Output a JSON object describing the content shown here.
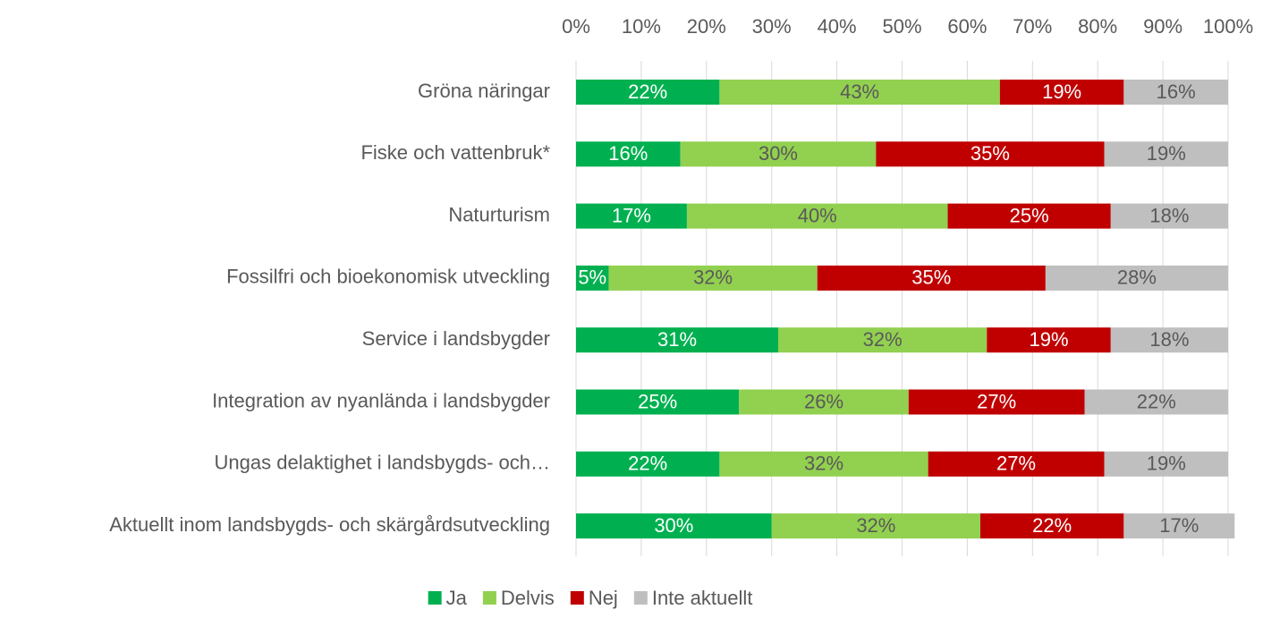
{
  "chart_data": {
    "type": "stacked_bar_horizontal",
    "categories": [
      "Gröna näringar",
      "Fiske och vattenbruk*",
      "Naturturism",
      "Fossilfri och bioekonomisk utveckling",
      "Service i landsbygder",
      "Integration av nyanlända i landsbygder",
      "Ungas delaktighet i landsbygds- och…",
      "Aktuellt inom landsbygds- och skärgårdsutveckling"
    ],
    "series": [
      {
        "name": "Ja",
        "color": "#00b050",
        "label_color": "#ffffff",
        "values": [
          22,
          16,
          17,
          5,
          31,
          25,
          22,
          30
        ],
        "value_labels": [
          "22%",
          "16%",
          "17%",
          "5%",
          "31%",
          "25%",
          "22%",
          "30%"
        ]
      },
      {
        "name": "Delvis",
        "color": "#92d050",
        "label_color": "#595959",
        "values": [
          43,
          30,
          40,
          32,
          32,
          26,
          32,
          32
        ],
        "value_labels": [
          "43%",
          "30%",
          "40%",
          "32%",
          "32%",
          "26%",
          "32%",
          "32%"
        ]
      },
      {
        "name": "Nej",
        "color": "#c00000",
        "label_color": "#ffffff",
        "values": [
          19,
          35,
          25,
          35,
          19,
          27,
          27,
          22
        ],
        "value_labels": [
          "19%",
          "35%",
          "25%",
          "35%",
          "19%",
          "27%",
          "27%",
          "22%"
        ]
      },
      {
        "name": "Inte aktuellt",
        "color": "#bfbfbf",
        "label_color": "#595959",
        "values": [
          16,
          19,
          18,
          28,
          18,
          22,
          19,
          17
        ],
        "value_labels": [
          "16%",
          "19%",
          "18%",
          "28%",
          "18%",
          "22%",
          "19%",
          "17%"
        ]
      }
    ],
    "xlim": [
      0,
      100
    ],
    "xticks": [
      {
        "value": 0,
        "label": "0%"
      },
      {
        "value": 10,
        "label": "10%"
      },
      {
        "value": 20,
        "label": "20%"
      },
      {
        "value": 30,
        "label": "30%"
      },
      {
        "value": 40,
        "label": "40%"
      },
      {
        "value": 50,
        "label": "50%"
      },
      {
        "value": 60,
        "label": "60%"
      },
      {
        "value": 70,
        "label": "70%"
      },
      {
        "value": 80,
        "label": "80%"
      },
      {
        "value": 90,
        "label": "90%"
      },
      {
        "value": 100,
        "label": "100%"
      }
    ],
    "grid": true,
    "legend": "bottom"
  }
}
